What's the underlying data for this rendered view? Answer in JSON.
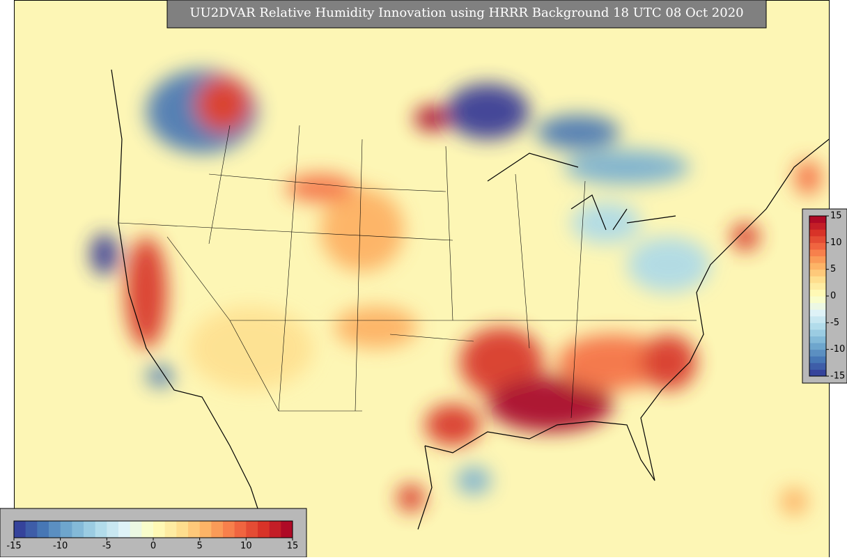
{
  "title": "UU2DVAR Relative Humidity Innovation using HRRR Background 18 UTC 08 Oct 2020",
  "colors": [
    "#313695",
    "#4575b4",
    "#74add1",
    "#abd9e9",
    "#e0f3f8",
    "#ffffbf",
    "#fee090",
    "#fdae61",
    "#f46d43",
    "#d73027",
    "#a50026"
  ],
  "horizontal_colorbar": {
    "ticks": [
      -15,
      -10,
      -5,
      0,
      5,
      10,
      15
    ]
  },
  "vertical_colorbar": {
    "ticks": [
      -15,
      -10,
      -5,
      0,
      5,
      10,
      15
    ]
  }
}
